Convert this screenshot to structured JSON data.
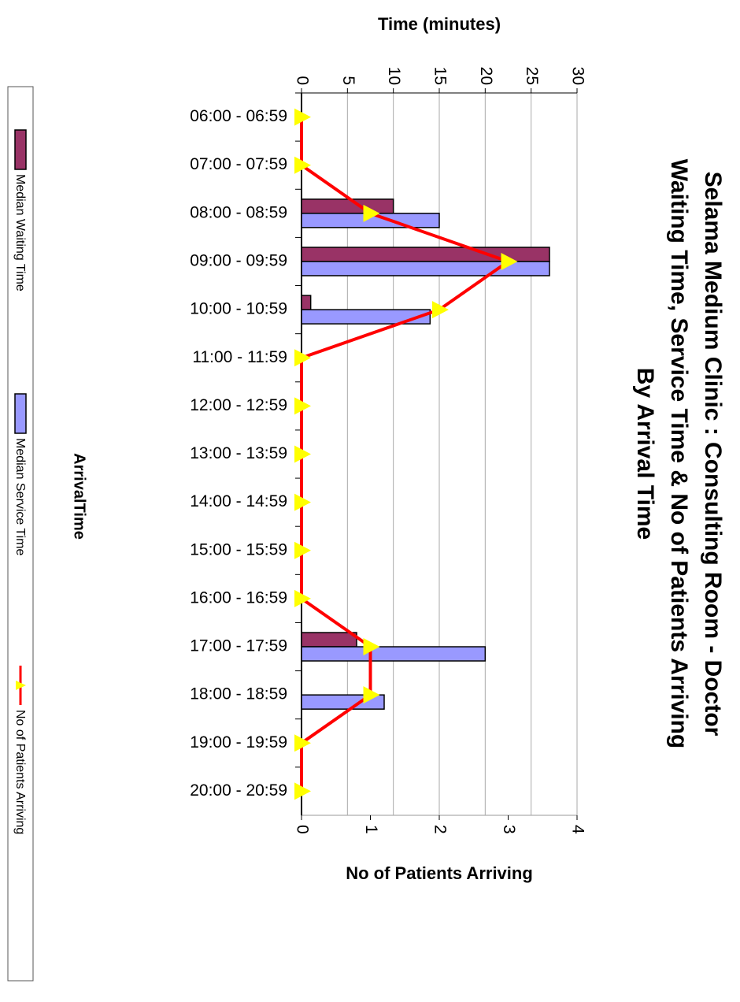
{
  "chart_data": {
    "type": "bar",
    "title": [
      "Selama Medium Clinic : Consulting Room - Doctor",
      "Waiting Time, Service Time & No of Patients Arriving",
      "By Arrival Time"
    ],
    "x_label": "ArrivalTime",
    "y_label": "Time (minutes)",
    "y2_label": "No of Patients Arriving",
    "categories": [
      "06:00 - 06:59",
      "07:00 - 07:59",
      "08:00 - 08:59",
      "09:00 - 09:59",
      "10:00 - 10:59",
      "11:00 - 11:59",
      "12:00 - 12:59",
      "13:00 - 13:59",
      "14:00 - 14:59",
      "15:00 - 15:59",
      "16:00 - 16:59",
      "17:00 - 17:59",
      "18:00 - 18:59",
      "19:00 - 19:59",
      "20:00 - 20:59"
    ],
    "series": [
      {
        "name": "Median Waiting Time",
        "type": "bar",
        "color": "#993366",
        "values": [
          0,
          0,
          10,
          27,
          1,
          0,
          0,
          0,
          0,
          0,
          0,
          6,
          0,
          0,
          0
        ]
      },
      {
        "name": "Median Service Time",
        "type": "bar",
        "color": "#9999ff",
        "values": [
          0,
          0,
          15,
          27,
          14,
          0,
          0,
          0,
          0,
          0,
          0,
          20,
          9,
          0,
          0
        ]
      },
      {
        "name": "No of Patients Arriving",
        "type": "line",
        "axis": "y2",
        "color": "#ff0000",
        "marker_color": "#ffff00",
        "values": [
          0,
          0,
          1,
          3,
          2,
          0,
          0,
          0,
          0,
          0,
          0,
          1,
          1,
          0,
          0
        ]
      }
    ],
    "ylim": [
      0,
      30
    ],
    "yticks": [
      0,
      5,
      10,
      15,
      20,
      25,
      30
    ],
    "y2lim": [
      0,
      4
    ],
    "y2ticks": [
      0,
      1,
      2,
      3,
      4
    ],
    "grid": true,
    "legend": "bottom"
  }
}
